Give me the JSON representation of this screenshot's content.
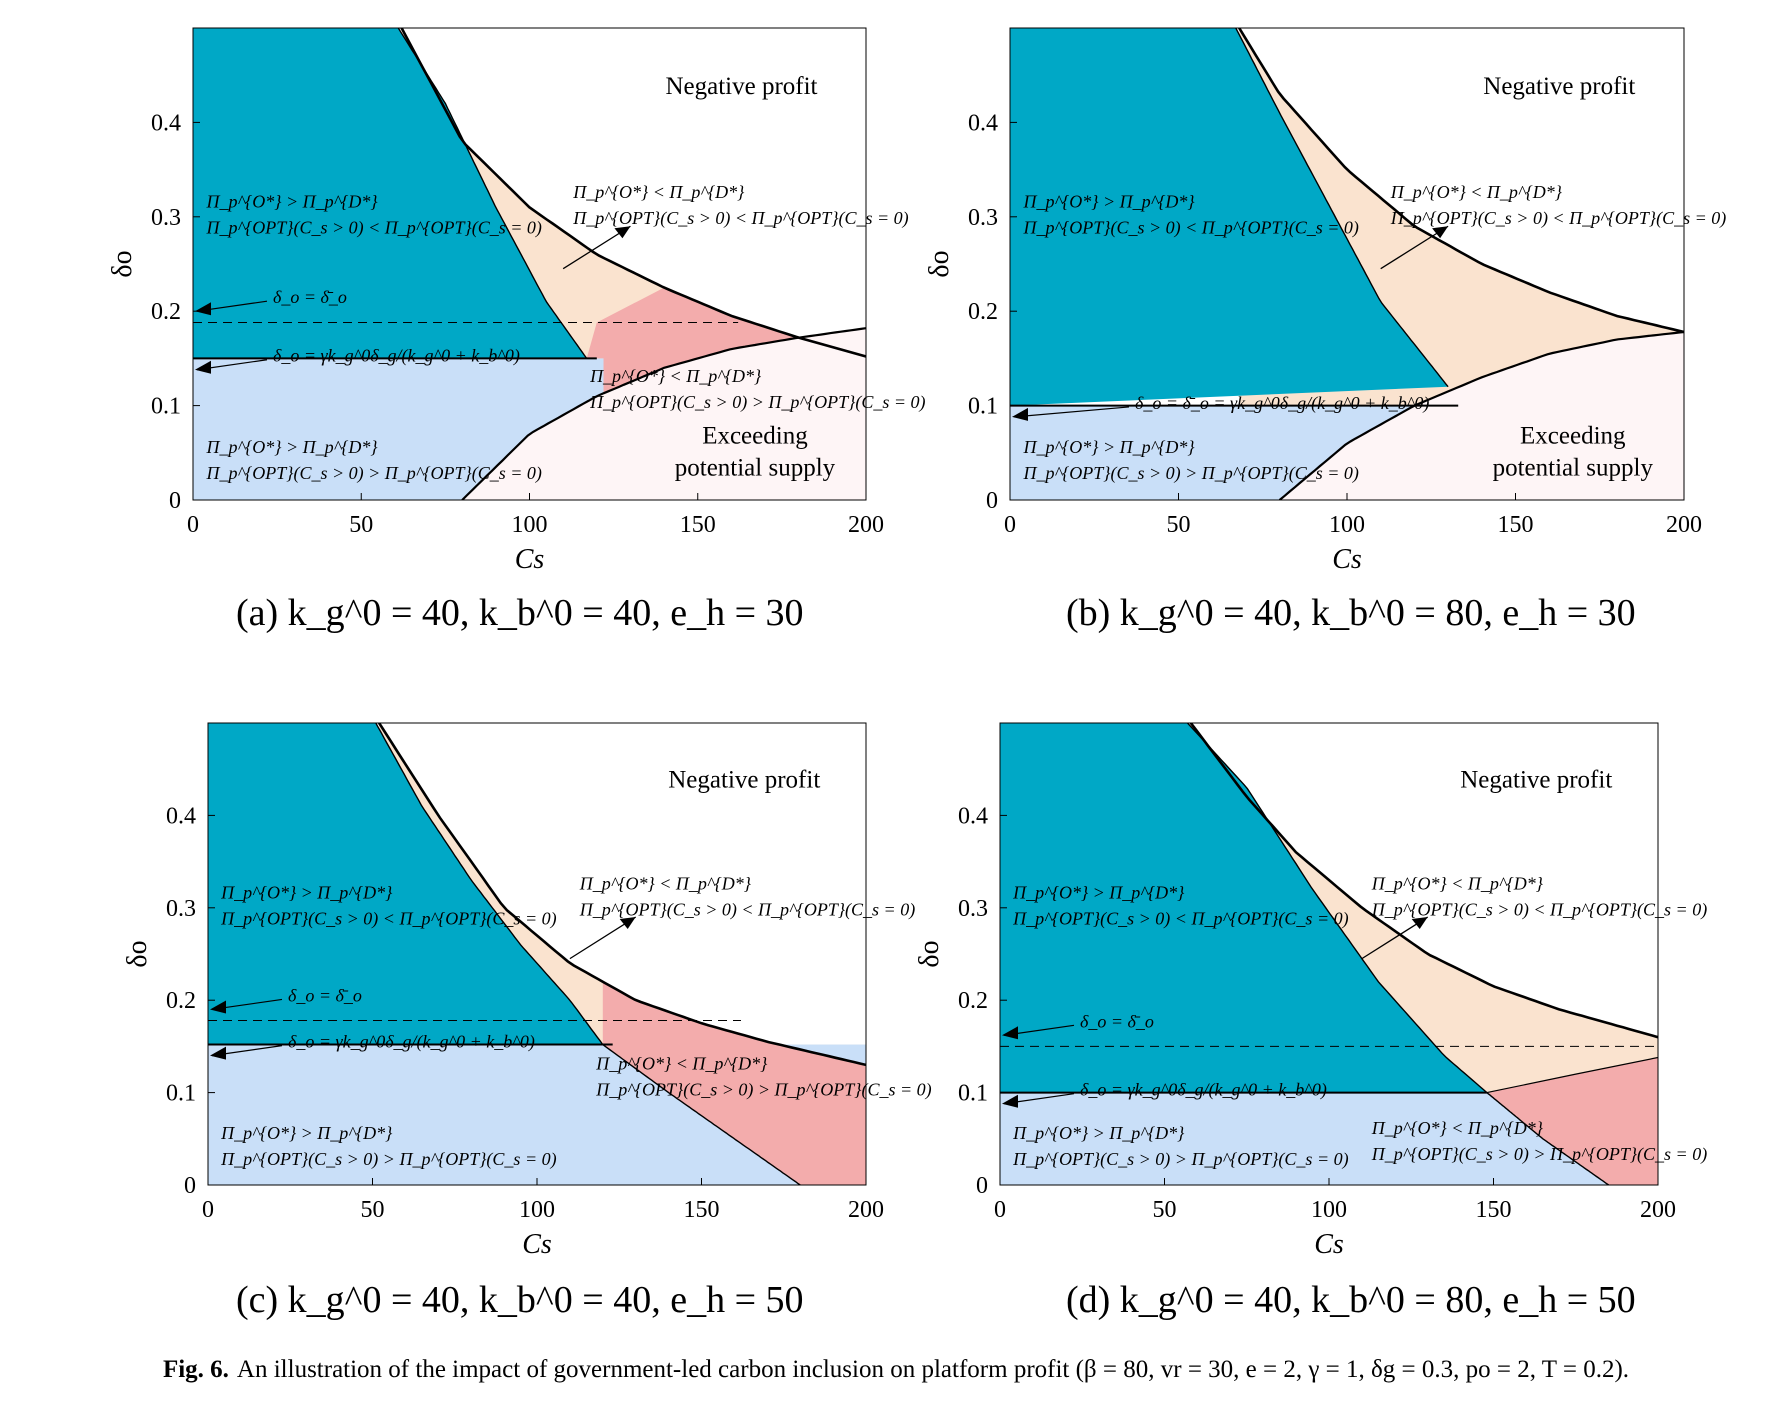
{
  "caption": {
    "label": "Fig. 6.",
    "text": "An illustration of the impact of government-led carbon inclusion on platform profit (β = 80, vr = 30, e = 2, γ = 1, δg = 0.3, po = 2, T = 0.2)."
  },
  "colors": {
    "teal": "#00A8C6",
    "peach": "#FAE3CF",
    "light_blue": "#C9DFF8",
    "pink": "#F3ACAC",
    "pale": "#FEF5F6",
    "white": "#FFFFFF"
  },
  "chart_data": [
    {
      "type": "area",
      "subtitle": "(a) k_g^0 = 40, k_b^0 = 40, e_h = 30",
      "xlabel": "C_s",
      "ylabel": "δ_o",
      "xlim": [
        0,
        200
      ],
      "ylim": [
        0,
        0.5
      ],
      "xticks": [
        "0",
        "50",
        "100",
        "150",
        "200"
      ],
      "yticks": [
        "0",
        "0.1",
        "0.2",
        "0.3",
        "0.4"
      ],
      "curves": {
        "negative_profit_boundary": {
          "x": [
            62,
            80,
            100,
            120,
            140,
            160,
            180,
            200
          ],
          "y": [
            0.5,
            0.38,
            0.31,
            0.26,
            0.225,
            0.195,
            0.172,
            0.152
          ]
        },
        "teal_boundary": {
          "x": [
            61,
            75,
            90,
            105,
            117
          ],
          "y": [
            0.5,
            0.42,
            0.31,
            0.21,
            0.15
          ]
        },
        "exceeding_supply_boundary": {
          "x": [
            80,
            100,
            120,
            140,
            160,
            180,
            200
          ],
          "y": [
            0,
            0.07,
            0.11,
            0.14,
            0.16,
            0.172,
            0.182
          ]
        }
      },
      "lines": {
        "delta_bar": 0.188,
        "delta_gamma": 0.15
      },
      "annotations": {
        "negative_profit": "Negative profit",
        "exceeding_supply": [
          "Exceeding",
          "potential supply"
        ],
        "teal_region": [
          "Π_p^{O*} > Π_p^{D*}",
          "Π_p^{OPT}(C_s > 0) < Π_p^{OPT}(C_s = 0)"
        ],
        "peach_region": [
          "Π_p^{O*} < Π_p^{D*}",
          "Π_p^{OPT}(C_s > 0) < Π_p^{OPT}(C_s = 0)"
        ],
        "pink_region": [
          "Π_p^{O*} < Π_p^{D*}",
          "Π_p^{OPT}(C_s > 0) > Π_p^{OPT}(C_s = 0)"
        ],
        "blue_region": [
          "Π_p^{O*} > Π_p^{D*}",
          "Π_p^{OPT}(C_s > 0) > Π_p^{OPT}(C_s = 0)"
        ],
        "delta_bar_label": "δ_o = δ̄_o",
        "delta_gamma_label": "δ_o = γk_g^0δ_g/(k_g^0 + k_b^0)"
      }
    },
    {
      "type": "area",
      "subtitle": "(b) k_g^0 = 40, k_b^0 = 80, e_h = 30",
      "xlabel": "C_s",
      "ylabel": "δ_o",
      "xlim": [
        0,
        200
      ],
      "ylim": [
        0,
        0.5
      ],
      "xticks": [
        "0",
        "50",
        "100",
        "150",
        "200"
      ],
      "yticks": [
        "0",
        "0.1",
        "0.2",
        "0.3",
        "0.4"
      ],
      "curves": {
        "negative_profit_boundary": {
          "x": [
            68,
            80,
            100,
            120,
            140,
            160,
            180,
            200
          ],
          "y": [
            0.5,
            0.43,
            0.35,
            0.29,
            0.25,
            0.22,
            0.195,
            0.178
          ]
        },
        "teal_boundary": {
          "x": [
            67,
            80,
            95,
            110,
            130
          ],
          "y": [
            0.5,
            0.41,
            0.31,
            0.21,
            0.12
          ]
        },
        "exceeding_supply_boundary": {
          "x": [
            80,
            100,
            120,
            140,
            160,
            180,
            200
          ],
          "y": [
            0,
            0.06,
            0.1,
            0.13,
            0.155,
            0.17,
            0.178
          ]
        }
      },
      "lines": {
        "delta_gamma": 0.1
      },
      "annotations": {
        "negative_profit": "Negative profit",
        "exceeding_supply": [
          "Exceeding",
          "potential supply"
        ],
        "teal_region": [
          "Π_p^{O*} > Π_p^{D*}",
          "Π_p^{OPT}(C_s > 0) < Π_p^{OPT}(C_s = 0)"
        ],
        "peach_region": [
          "Π_p^{O*} < Π_p^{D*}",
          "Π_p^{OPT}(C_s > 0) < Π_p^{OPT}(C_s = 0)"
        ],
        "blue_region": [
          "Π_p^{O*} > Π_p^{D*}",
          "Π_p^{OPT}(C_s > 0) > Π_p^{OPT}(C_s = 0)"
        ],
        "delta_gamma_label": "δ_o = δ̄_o = γk_g^0δ_g/(k_g^0 + k_b^0)"
      }
    },
    {
      "type": "area",
      "subtitle": "(c) k_g^0 = 40, k_b^0 = 40, e_h = 50",
      "xlabel": "C_s",
      "ylabel": "δ_o",
      "xlim": [
        0,
        200
      ],
      "ylim": [
        0,
        0.5
      ],
      "xticks": [
        "0",
        "50",
        "100",
        "150",
        "200"
      ],
      "yticks": [
        "0",
        "0.1",
        "0.2",
        "0.3",
        "0.4"
      ],
      "curves": {
        "negative_profit_boundary": {
          "x": [
            52,
            70,
            90,
            110,
            130,
            150,
            170,
            200
          ],
          "y": [
            0.5,
            0.4,
            0.3,
            0.24,
            0.2,
            0.175,
            0.155,
            0.13
          ]
        },
        "teal_boundary": {
          "x": [
            51,
            65,
            80,
            95,
            110,
            120
          ],
          "y": [
            0.5,
            0.41,
            0.33,
            0.26,
            0.2,
            0.152
          ]
        },
        "pink_boundary": {
          "x": [
            120,
            140,
            160,
            180
          ],
          "y": [
            0.152,
            0.1,
            0.05,
            0
          ]
        }
      },
      "lines": {
        "delta_bar": 0.178,
        "delta_gamma": 0.152
      },
      "annotations": {
        "negative_profit": "Negative profit",
        "teal_region": [
          "Π_p^{O*} > Π_p^{D*}",
          "Π_p^{OPT}(C_s > 0) < Π_p^{OPT}(C_s = 0)"
        ],
        "peach_region": [
          "Π_p^{O*} < Π_p^{D*}",
          "Π_p^{OPT}(C_s > 0) < Π_p^{OPT}(C_s = 0)"
        ],
        "pink_region": [
          "Π_p^{O*} < Π_p^{D*}",
          "Π_p^{OPT}(C_s > 0) > Π_p^{OPT}(C_s = 0)"
        ],
        "blue_region": [
          "Π_p^{O*} > Π_p^{D*}",
          "Π_p^{OPT}(C_s > 0) > Π_p^{OPT}(C_s = 0)"
        ],
        "delta_bar_label": "δ_o = δ̄_o",
        "delta_gamma_label": "δ_o = γk_g^0δ_g/(k_g^0 + k_b^0)"
      }
    },
    {
      "type": "area",
      "subtitle": "(d) k_g^0 = 40, k_b^0 = 80, e_h = 50",
      "xlabel": "C_s",
      "ylabel": "δ_o",
      "xlim": [
        0,
        200
      ],
      "ylim": [
        0,
        0.5
      ],
      "xticks": [
        "0",
        "50",
        "100",
        "150",
        "200"
      ],
      "yticks": [
        "0",
        "0.1",
        "0.2",
        "0.3",
        "0.4"
      ],
      "curves": {
        "negative_profit_boundary": {
          "x": [
            58,
            75,
            90,
            110,
            130,
            150,
            170,
            200
          ],
          "y": [
            0.5,
            0.42,
            0.36,
            0.3,
            0.25,
            0.215,
            0.19,
            0.16
          ]
        },
        "teal_boundary": {
          "x": [
            57,
            75,
            95,
            115,
            135,
            148
          ],
          "y": [
            0.5,
            0.43,
            0.32,
            0.22,
            0.14,
            0.1
          ]
        },
        "pink_boundary": {
          "x": [
            148,
            165,
            185
          ],
          "y": [
            0.1,
            0.05,
            0
          ]
        },
        "pink_upper": {
          "x": [
            148,
            175,
            200
          ],
          "y": [
            0.1,
            0.12,
            0.138
          ]
        }
      },
      "lines": {
        "delta_bar": 0.15,
        "delta_gamma": 0.1
      },
      "annotations": {
        "negative_profit": "Negative profit",
        "teal_region": [
          "Π_p^{O*} > Π_p^{D*}",
          "Π_p^{OPT}(C_s > 0) < Π_p^{OPT}(C_s = 0)"
        ],
        "peach_region": [
          "Π_p^{O*} < Π_p^{D*}",
          "Π_p^{OPT}(C_s > 0) < Π_p^{OPT}(C_s = 0)"
        ],
        "pink_region": [
          "Π_p^{O*} < Π_p^{D*}",
          "Π_p^{OPT}(C_s > 0) > Π_p^{OPT}(C_s = 0)"
        ],
        "blue_region": [
          "Π_p^{O*} > Π_p^{D*}",
          "Π_p^{OPT}(C_s > 0) > Π_p^{OPT}(C_s = 0)"
        ],
        "delta_bar_label": "δ_o = δ̄_o",
        "delta_gamma_label": "δ_o = γk_g^0δ_g/(k_g^0 + k_b^0)"
      }
    }
  ]
}
